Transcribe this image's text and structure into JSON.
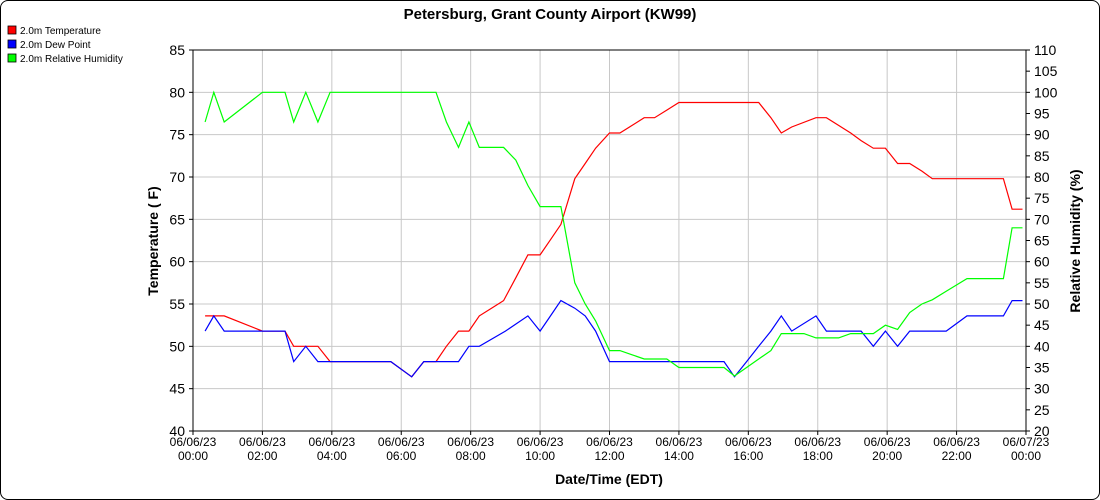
{
  "chart_data": {
    "type": "line",
    "title": "Petersburg, Grant County Airport (KW99)",
    "xlabel": "Date/Time (EDT)",
    "ylabel": "Temperature ( F)",
    "y2label": "Relative Humidity (%)",
    "ylim": [
      40,
      85
    ],
    "y2lim": [
      20,
      110
    ],
    "xlim_hours": [
      0,
      24
    ],
    "yticks": [
      40,
      45,
      50,
      55,
      60,
      65,
      70,
      75,
      80,
      85
    ],
    "y2ticks": [
      20,
      25,
      30,
      35,
      40,
      45,
      50,
      55,
      60,
      65,
      70,
      75,
      80,
      85,
      90,
      95,
      100,
      105,
      110
    ],
    "xticks": [
      {
        "h": 0,
        "date": "06/06/23",
        "time": "00:00"
      },
      {
        "h": 2,
        "date": "06/06/23",
        "time": "02:00"
      },
      {
        "h": 4,
        "date": "06/06/23",
        "time": "04:00"
      },
      {
        "h": 6,
        "date": "06/06/23",
        "time": "06:00"
      },
      {
        "h": 8,
        "date": "06/06/23",
        "time": "08:00"
      },
      {
        "h": 10,
        "date": "06/06/23",
        "time": "10:00"
      },
      {
        "h": 12,
        "date": "06/06/23",
        "time": "12:00"
      },
      {
        "h": 14,
        "date": "06/06/23",
        "time": "14:00"
      },
      {
        "h": 16,
        "date": "06/06/23",
        "time": "16:00"
      },
      {
        "h": 18,
        "date": "06/06/23",
        "time": "18:00"
      },
      {
        "h": 20,
        "date": "06/06/23",
        "time": "20:00"
      },
      {
        "h": 22,
        "date": "06/06/23",
        "time": "22:00"
      },
      {
        "h": 24,
        "date": "06/07/23",
        "time": "00:00"
      }
    ],
    "grid": true,
    "legend_placement": "top-left",
    "series": [
      {
        "name": "2.0m Temperature",
        "color": "#ff0000",
        "axis": "left",
        "x": [
          0.35,
          0.6,
          0.9,
          2.0,
          2.65,
          2.9,
          3.25,
          3.6,
          3.95,
          4.3,
          5.0,
          5.7,
          6.3,
          6.65,
          7.0,
          7.3,
          7.65,
          7.95,
          8.25,
          8.6,
          8.95,
          9.3,
          9.65,
          10.0,
          10.3,
          10.6,
          11.0,
          11.3,
          11.6,
          12.0,
          12.3,
          12.65,
          13.0,
          13.3,
          13.65,
          14.0,
          14.6,
          15.3,
          15.95,
          16.3,
          16.65,
          16.95,
          17.25,
          17.95,
          18.25,
          18.6,
          18.95,
          19.25,
          19.6,
          19.95,
          20.3,
          20.65,
          21.0,
          21.3,
          21.7,
          22.3,
          23.0,
          23.35,
          23.6,
          23.9
        ],
        "values": [
          53.6,
          53.6,
          53.6,
          51.8,
          51.8,
          50.0,
          50.0,
          50.0,
          48.2,
          48.2,
          48.2,
          48.2,
          46.4,
          48.2,
          48.2,
          50.0,
          51.8,
          51.8,
          53.6,
          54.5,
          55.4,
          58.1,
          60.8,
          60.8,
          62.6,
          64.4,
          69.8,
          71.6,
          73.4,
          75.2,
          75.2,
          76.1,
          77.0,
          77.0,
          77.9,
          78.8,
          78.8,
          78.8,
          78.8,
          78.8,
          77.0,
          75.2,
          75.9,
          77.0,
          77.0,
          76.1,
          75.2,
          74.3,
          73.4,
          73.4,
          71.6,
          71.6,
          70.7,
          69.8,
          69.8,
          69.8,
          69.8,
          69.8,
          66.2,
          66.2
        ]
      },
      {
        "name": "2.0m Dew Point",
        "color": "#0000ff",
        "axis": "left",
        "x": [
          0.35,
          0.6,
          0.9,
          2.0,
          2.65,
          2.9,
          3.25,
          3.6,
          3.95,
          4.3,
          5.0,
          5.7,
          6.3,
          6.65,
          7.0,
          7.3,
          7.65,
          7.95,
          8.25,
          9.0,
          9.65,
          10.0,
          10.3,
          10.6,
          11.0,
          11.3,
          11.6,
          12.0,
          12.3,
          12.65,
          13.0,
          13.3,
          13.65,
          14.0,
          14.6,
          15.3,
          15.6,
          15.95,
          16.3,
          16.65,
          16.95,
          17.25,
          17.95,
          18.25,
          18.6,
          18.95,
          19.25,
          19.6,
          19.95,
          20.3,
          20.65,
          21.0,
          21.3,
          21.7,
          22.3,
          23.0,
          23.35,
          23.6,
          23.9
        ],
        "values": [
          51.8,
          53.6,
          51.8,
          51.8,
          51.8,
          48.2,
          50.0,
          48.2,
          48.2,
          48.2,
          48.2,
          48.2,
          46.4,
          48.2,
          48.2,
          48.2,
          48.2,
          50.0,
          50.0,
          51.8,
          53.6,
          51.8,
          53.6,
          55.4,
          54.5,
          53.6,
          51.8,
          48.2,
          48.2,
          48.2,
          48.2,
          48.2,
          48.2,
          48.2,
          48.2,
          48.2,
          46.4,
          48.2,
          50.0,
          51.8,
          53.6,
          51.8,
          53.6,
          51.8,
          51.8,
          51.8,
          51.8,
          50.0,
          51.8,
          50.0,
          51.8,
          51.8,
          51.8,
          51.8,
          53.6,
          53.6,
          53.6,
          55.4,
          55.4
        ]
      },
      {
        "name": "2.0m Relative Humidity",
        "color": "#00ff00",
        "axis": "right",
        "x": [
          0.35,
          0.6,
          0.9,
          2.0,
          2.65,
          2.9,
          3.25,
          3.6,
          3.95,
          4.3,
          5.0,
          5.7,
          6.3,
          6.65,
          7.0,
          7.3,
          7.65,
          7.95,
          8.25,
          8.6,
          8.95,
          9.3,
          9.65,
          10.0,
          10.3,
          10.6,
          11.0,
          11.3,
          11.6,
          12.0,
          12.3,
          12.65,
          13.0,
          13.3,
          13.65,
          14.0,
          14.6,
          15.3,
          15.6,
          15.95,
          16.3,
          16.65,
          16.95,
          17.25,
          17.6,
          17.95,
          18.25,
          18.6,
          18.95,
          19.25,
          19.6,
          19.95,
          20.3,
          20.65,
          21.0,
          21.3,
          21.7,
          22.3,
          23.0,
          23.35,
          23.6,
          23.9
        ],
        "values": [
          93,
          100,
          93,
          100,
          100,
          93,
          100,
          93,
          100,
          100,
          100,
          100,
          100,
          100,
          100,
          93,
          87,
          93,
          87,
          87,
          87,
          84,
          78,
          73,
          73,
          73,
          55,
          50,
          46,
          39,
          39,
          38,
          37,
          37,
          37,
          35,
          35,
          35,
          33,
          35,
          37,
          39,
          43,
          43,
          43,
          42,
          42,
          42,
          43,
          43,
          43,
          45,
          44,
          48,
          50,
          51,
          53,
          56,
          56,
          56,
          68,
          68
        ]
      }
    ]
  }
}
